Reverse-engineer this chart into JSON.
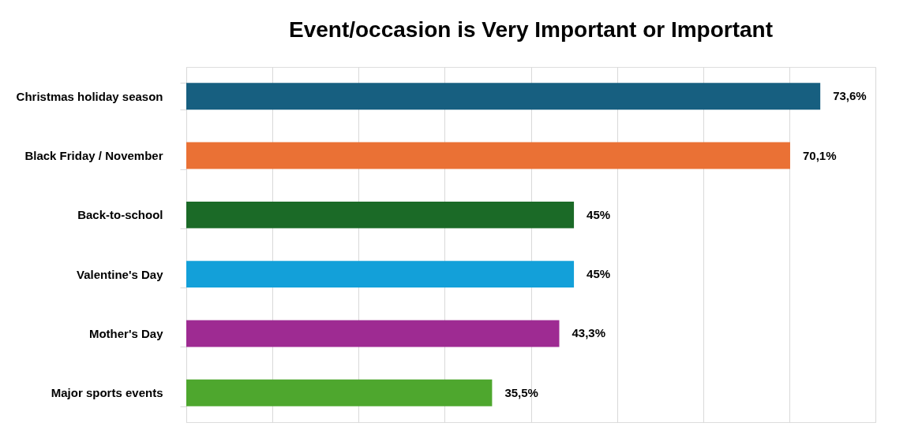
{
  "chart_data": {
    "type": "bar",
    "orientation": "horizontal",
    "title": "Event/occasion is Very Important or Important",
    "categories": [
      "Christmas holiday season",
      "Black Friday / November",
      "Back-to-school",
      "Valentine's Day",
      "Mother's Day",
      "Major sports events"
    ],
    "values": [
      73.6,
      70.1,
      45,
      45,
      43.3,
      35.5
    ],
    "colors": [
      "#175f80",
      "#ea7135",
      "#1b6a27",
      "#13a0d9",
      "#9e2b92",
      "#4ea72e"
    ],
    "value_labels": [
      "73,6%",
      "70,1%",
      "45%",
      "45%",
      "43,3%",
      "35,5%"
    ],
    "xlim": [
      0,
      80
    ],
    "xticks": [
      {
        "value": 0,
        "label": null
      },
      {
        "value": 10,
        "label": null
      },
      {
        "value": 20,
        "label": null
      },
      {
        "value": 30,
        "label": null
      },
      {
        "value": 40,
        "label": null
      },
      {
        "value": 50,
        "label": null
      },
      {
        "value": 60,
        "label": null
      },
      {
        "value": 70,
        "label": null
      },
      {
        "value": 80,
        "label": null
      }
    ],
    "tick_labels": "y",
    "grid": "x"
  }
}
